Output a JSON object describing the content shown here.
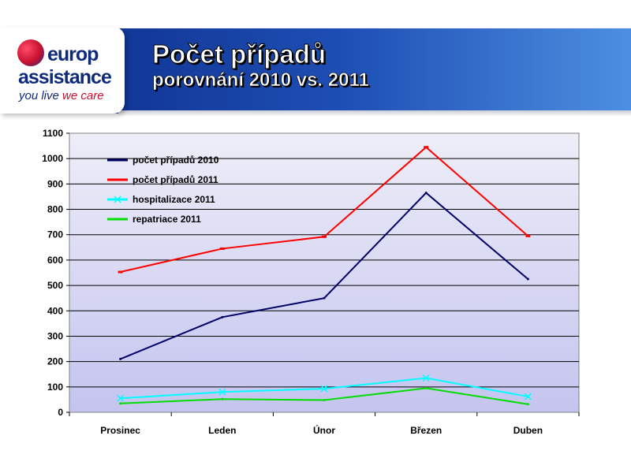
{
  "brand": {
    "logo_line1": "europ",
    "logo_line2": "assistance",
    "tagline_part1": "you live",
    "tagline_part2": "we care"
  },
  "header": {
    "title": "Počet případů",
    "subtitle": "porovnání 2010 vs. 2011"
  },
  "colors": {
    "header_band": "#0a2a86",
    "plot_gradient_top": "#eeeef8",
    "plot_gradient_bottom": "#c4c4f0"
  },
  "chart_data": {
    "type": "line",
    "categories": [
      "Prosinec",
      "Leden",
      "Únor",
      "Březen",
      "Duben"
    ],
    "ylim": [
      0,
      1100
    ],
    "yticks": [
      0,
      100,
      200,
      300,
      400,
      500,
      600,
      700,
      800,
      900,
      1000,
      1100
    ],
    "grid": true,
    "legend_position": "top-left",
    "series": [
      {
        "name": "počet případů 2010",
        "color": "#000066",
        "values": [
          210,
          375,
          450,
          865,
          525
        ]
      },
      {
        "name": "počet případů 2011",
        "color": "#ff0000",
        "values": [
          553,
          645,
          692,
          1045,
          695
        ]
      },
      {
        "name": "hospitalizace 2011",
        "color": "#00ffff",
        "values": [
          55,
          80,
          93,
          135,
          62
        ]
      },
      {
        "name": "repatriace 2011",
        "color": "#00dd00",
        "values": [
          35,
          52,
          48,
          95,
          32
        ]
      }
    ]
  }
}
